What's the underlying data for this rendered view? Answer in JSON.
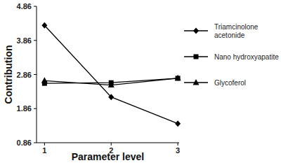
{
  "chart_data": {
    "type": "line",
    "x_label": "Parameter level",
    "y_label": "Contribution",
    "x": [
      1,
      2,
      3
    ],
    "xlim": [
      0.88,
      3.02
    ],
    "xticks": [
      1,
      2,
      3
    ],
    "ylim": [
      0.86,
      4.86
    ],
    "yticks": [
      0.86,
      1.86,
      2.86,
      3.86,
      4.86
    ],
    "grid": false,
    "legend": "right",
    "series": [
      {
        "name": "Triamcinolone acetonide",
        "color": "#000000",
        "marker": "diamond",
        "line_style": "solid",
        "values": [
          4.3,
          2.2,
          1.42
        ]
      },
      {
        "name": "Nano hydroxyapatite",
        "color": "#000000",
        "marker": "square",
        "line_style": "solid",
        "values": [
          2.6,
          2.62,
          2.75
        ]
      },
      {
        "name": "Glycoferol",
        "color": "#000000",
        "marker": "triangle",
        "line_style": "solid",
        "values": [
          2.68,
          2.55,
          2.75
        ]
      }
    ]
  }
}
